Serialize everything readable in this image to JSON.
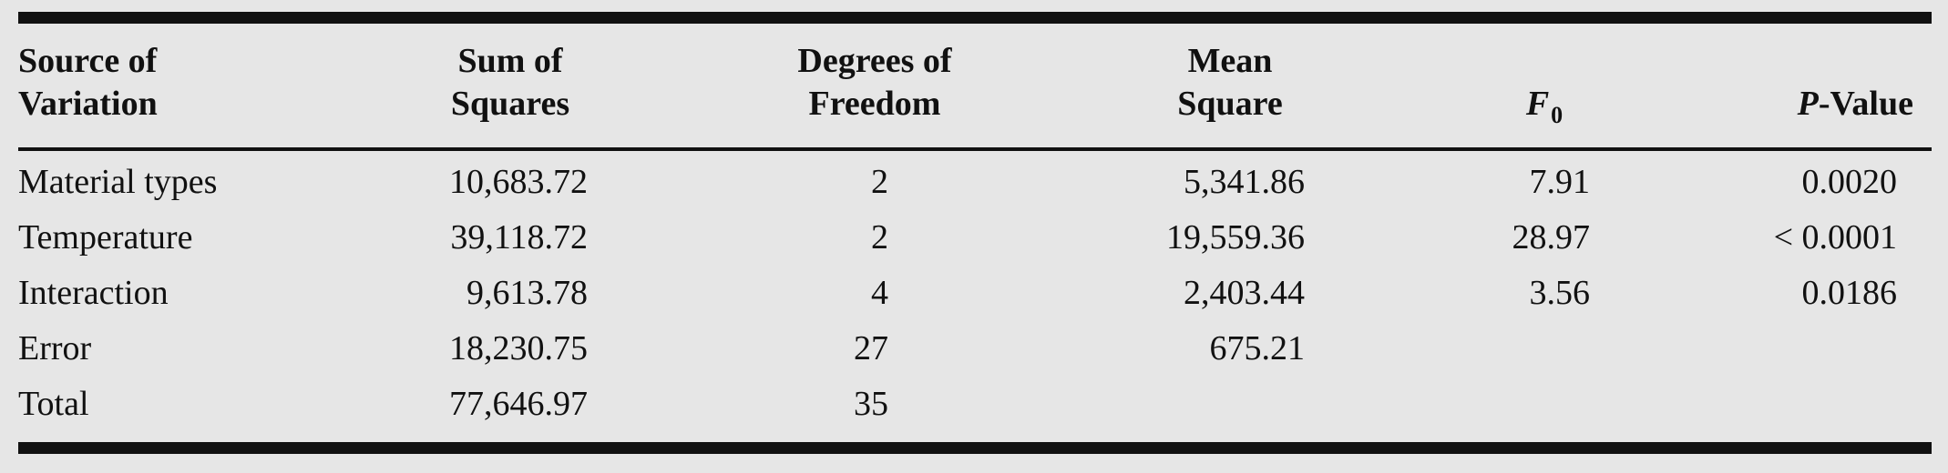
{
  "table": {
    "header": {
      "source": [
        "Source of",
        "Variation"
      ],
      "sum_of_squares": [
        "Sum of",
        "Squares"
      ],
      "degrees_of_freedom": [
        "Degrees of",
        "Freedom"
      ],
      "mean_square": [
        "Mean",
        "Square"
      ],
      "f0": {
        "symbol": "F",
        "subscript": "0"
      },
      "p_value": {
        "symbol": "P",
        "suffix": "-Value"
      }
    },
    "rows": [
      {
        "source": "Material types",
        "ss": "10,683.72",
        "df": "2",
        "ms": "5,341.86",
        "f0": "7.91",
        "p": "0.0020"
      },
      {
        "source": "Temperature",
        "ss": "39,118.72",
        "df": "2",
        "ms": "19,559.36",
        "f0": "28.97",
        "p": "< 0.0001"
      },
      {
        "source": "Interaction",
        "ss": "9,613.78",
        "df": "4",
        "ms": "2,403.44",
        "f0": "3.56",
        "p": "0.0186"
      },
      {
        "source": "Error",
        "ss": "18,230.75",
        "df": "27",
        "ms": "675.21",
        "f0": "",
        "p": ""
      },
      {
        "source": "Total",
        "ss": "77,646.97",
        "df": "35",
        "ms": "",
        "f0": "",
        "p": ""
      }
    ]
  }
}
